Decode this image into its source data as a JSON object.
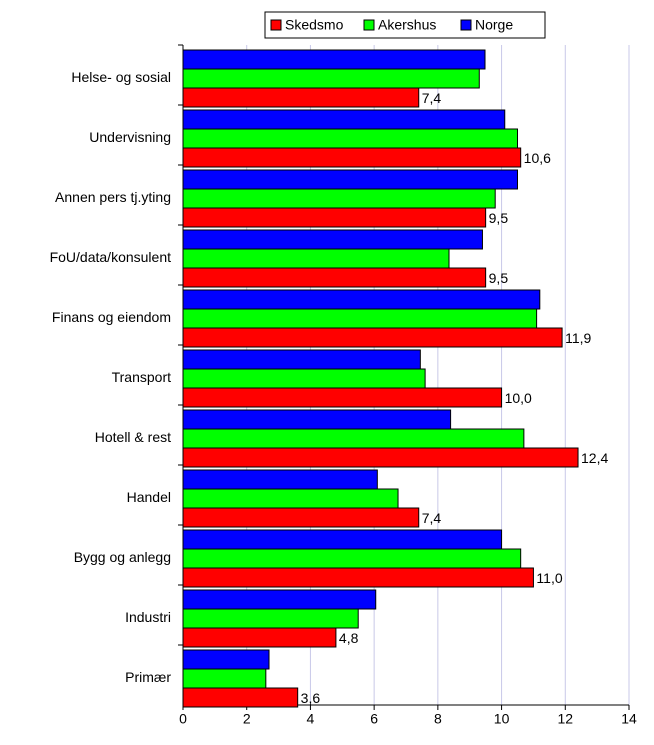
{
  "chart_data": {
    "type": "hbar",
    "categories": [
      "Helse- og sosial",
      "Undervisning",
      "Annen pers tj.yting",
      "FoU/data/konsulent",
      "Finans og eiendom",
      "Transport",
      "Hotell & rest",
      "Handel",
      "Bygg og anlegg",
      "Industri",
      "Primær"
    ],
    "series": [
      {
        "name": "Skedsmo",
        "color": "#ff0000",
        "values": [
          7.4,
          10.6,
          9.5,
          9.5,
          11.9,
          10.0,
          12.4,
          7.4,
          11.0,
          4.8,
          3.6
        ],
        "value_labels": [
          "7,4",
          "10,6",
          "9,5",
          "9,5",
          "11,9",
          "10,0",
          "12,4",
          "7,4",
          "11,0",
          "4,8",
          "3,6"
        ]
      },
      {
        "name": "Akershus",
        "color": "#00ff00",
        "values": [
          9.3,
          10.5,
          9.8,
          8.35,
          11.1,
          7.6,
          10.7,
          6.75,
          10.6,
          5.5,
          2.6
        ]
      },
      {
        "name": "Norge",
        "color": "#0000ff",
        "values": [
          9.48,
          10.1,
          10.5,
          9.4,
          11.2,
          7.45,
          8.4,
          6.1,
          10.0,
          6.05,
          2.7
        ]
      }
    ],
    "xlim": [
      0,
      14
    ],
    "xticks": [
      0,
      2,
      4,
      6,
      8,
      10,
      12,
      14
    ],
    "grid": true,
    "legend": "top"
  }
}
